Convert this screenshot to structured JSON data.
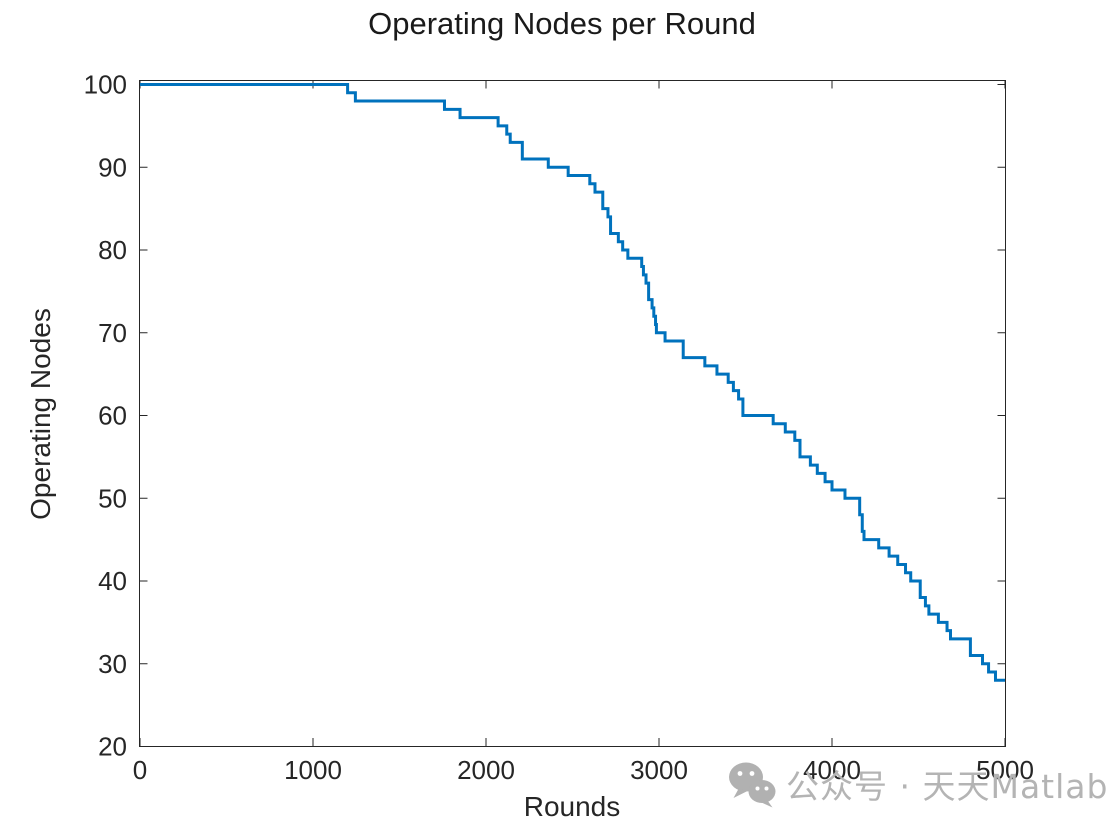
{
  "figure": {
    "background": "#ffffff"
  },
  "chart_data": {
    "type": "line",
    "step_mode": "post",
    "title": "Operating Nodes per Round",
    "xlabel": "Rounds",
    "ylabel": "Operating Nodes",
    "xlim": [
      0,
      5000
    ],
    "ylim": [
      20,
      100
    ],
    "x_ticks": [
      0,
      1000,
      2000,
      3000,
      4000,
      5000
    ],
    "y_ticks": [
      20,
      30,
      40,
      50,
      60,
      70,
      80,
      90,
      100
    ],
    "grid": false,
    "box_outline": true,
    "legend": null,
    "axis_color": "#262626",
    "series": [
      {
        "name": "operating-nodes",
        "color": "#0072BD",
        "line_width": 3,
        "points": [
          [
            0,
            100
          ],
          [
            1200,
            99
          ],
          [
            1245,
            98
          ],
          [
            1760,
            97
          ],
          [
            1850,
            96
          ],
          [
            2070,
            95
          ],
          [
            2120,
            94
          ],
          [
            2140,
            93
          ],
          [
            2210,
            91
          ],
          [
            2360,
            90
          ],
          [
            2475,
            89
          ],
          [
            2600,
            88
          ],
          [
            2630,
            87
          ],
          [
            2675,
            85
          ],
          [
            2705,
            84
          ],
          [
            2720,
            82
          ],
          [
            2765,
            81
          ],
          [
            2790,
            80
          ],
          [
            2820,
            79
          ],
          [
            2900,
            78
          ],
          [
            2910,
            77
          ],
          [
            2925,
            76
          ],
          [
            2940,
            74
          ],
          [
            2960,
            73
          ],
          [
            2970,
            72
          ],
          [
            2980,
            71
          ],
          [
            2985,
            70
          ],
          [
            3035,
            69
          ],
          [
            3140,
            67
          ],
          [
            3265,
            66
          ],
          [
            3335,
            65
          ],
          [
            3400,
            64
          ],
          [
            3430,
            63
          ],
          [
            3460,
            62
          ],
          [
            3485,
            60
          ],
          [
            3660,
            59
          ],
          [
            3730,
            58
          ],
          [
            3785,
            57
          ],
          [
            3815,
            55
          ],
          [
            3875,
            54
          ],
          [
            3915,
            53
          ],
          [
            3960,
            52
          ],
          [
            4000,
            51
          ],
          [
            4075,
            50
          ],
          [
            4160,
            48
          ],
          [
            4175,
            46
          ],
          [
            4185,
            45
          ],
          [
            4270,
            44
          ],
          [
            4330,
            43
          ],
          [
            4380,
            42
          ],
          [
            4425,
            41
          ],
          [
            4455,
            40
          ],
          [
            4510,
            38
          ],
          [
            4540,
            37
          ],
          [
            4560,
            36
          ],
          [
            4615,
            35
          ],
          [
            4665,
            34
          ],
          [
            4685,
            33
          ],
          [
            4800,
            31
          ],
          [
            4870,
            30
          ],
          [
            4905,
            29
          ],
          [
            4945,
            28
          ],
          [
            5000,
            28
          ]
        ]
      }
    ]
  },
  "watermark": {
    "icon": "wechat-icon",
    "text": "公众号 · 天天Matlab",
    "color": "#b4b4b4"
  }
}
